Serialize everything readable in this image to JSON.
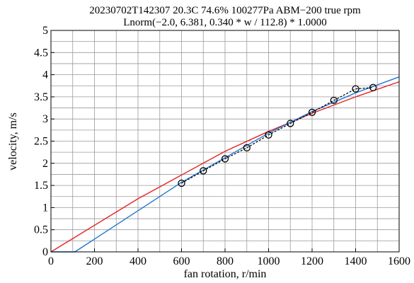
{
  "chart_data": {
    "type": "line",
    "title": "20230702T142307 20.3C 74.6% 100277Pa ABM−200 true rpm",
    "subtitle": "Lnorm(−2.0, 6.381, 0.340 * w / 112.8) * 1.0000",
    "xlabel": "fan rotation, r/min",
    "ylabel": "velocity, m/s",
    "xlim": [
      0,
      1600
    ],
    "ylim": [
      0,
      5
    ],
    "grid": true,
    "xticks": [
      0,
      200,
      400,
      600,
      800,
      1000,
      1200,
      1400,
      1600
    ],
    "yticks": [
      0,
      0.5,
      1,
      1.5,
      2,
      2.5,
      3,
      3.5,
      4,
      4.5,
      5
    ],
    "xtick_labels": [
      "0",
      "200",
      "400",
      "600",
      "800",
      "1000",
      "1200",
      "1400",
      "1600"
    ],
    "ytick_labels": [
      "0",
      "0.5",
      "1",
      "1.5",
      "2",
      "2.5",
      "3",
      "3.5",
      "4",
      "4.5",
      "5"
    ],
    "series": [
      {
        "style": "black dashed with circle markers",
        "color": "#000000",
        "x": [
          600,
          700,
          800,
          900,
          1000,
          1100,
          1200,
          1300,
          1400,
          1480
        ],
        "y": [
          1.55,
          1.83,
          2.1,
          2.35,
          2.64,
          2.9,
          3.15,
          3.42,
          3.68,
          3.71
        ]
      },
      {
        "style": "blue solid",
        "color": "#1f77d4",
        "x": [
          0,
          110,
          600,
          1000,
          1200,
          1400,
          1600
        ],
        "y": [
          0,
          0,
          1.57,
          2.68,
          3.17,
          3.59,
          3.95
        ]
      },
      {
        "style": "red solid",
        "color": "#e32222",
        "x": [
          0,
          400,
          800,
          1000,
          1200,
          1400,
          1600
        ],
        "y": [
          0,
          1.2,
          2.27,
          2.72,
          3.13,
          3.5,
          3.84
        ]
      }
    ]
  }
}
